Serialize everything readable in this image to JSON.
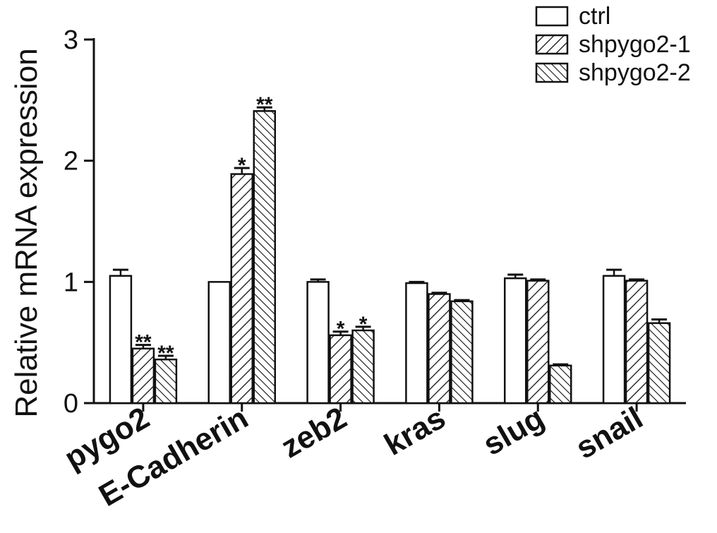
{
  "chart_data": {
    "type": "bar",
    "ylabel": "Relative mRNA expression",
    "xlabel": "",
    "ylim": [
      0,
      3
    ],
    "yticks": [
      0,
      1,
      2,
      3
    ],
    "categories": [
      "pygo2",
      "E-Cadherin",
      "zeb2",
      "kras",
      "slug",
      "snail"
    ],
    "series": [
      {
        "name": "ctrl",
        "pattern": "none",
        "values": [
          1.05,
          1.0,
          1.0,
          0.99,
          1.03,
          1.05
        ],
        "errors": [
          0.05,
          0.0,
          0.02,
          0.01,
          0.03,
          0.05
        ],
        "significance": [
          "",
          "",
          "",
          "",
          "",
          ""
        ]
      },
      {
        "name": "shpygo2-1",
        "pattern": "hatch-forward",
        "values": [
          0.45,
          1.89,
          0.56,
          0.9,
          1.01,
          1.01
        ],
        "errors": [
          0.03,
          0.05,
          0.03,
          0.01,
          0.01,
          0.01
        ],
        "significance": [
          "**",
          "*",
          "*",
          "",
          "",
          ""
        ]
      },
      {
        "name": "shpygo2-2",
        "pattern": "hatch-back",
        "values": [
          0.36,
          2.41,
          0.6,
          0.84,
          0.31,
          0.66
        ],
        "errors": [
          0.03,
          0.03,
          0.03,
          0.01,
          0.01,
          0.03
        ],
        "significance": [
          "**",
          "**",
          "*",
          "",
          "",
          ""
        ]
      }
    ],
    "legend_position": "top-right",
    "grid": false,
    "colors": {
      "bar_stroke": "#111111",
      "bar_fill": "#ffffff",
      "hatch": "#111111"
    }
  }
}
